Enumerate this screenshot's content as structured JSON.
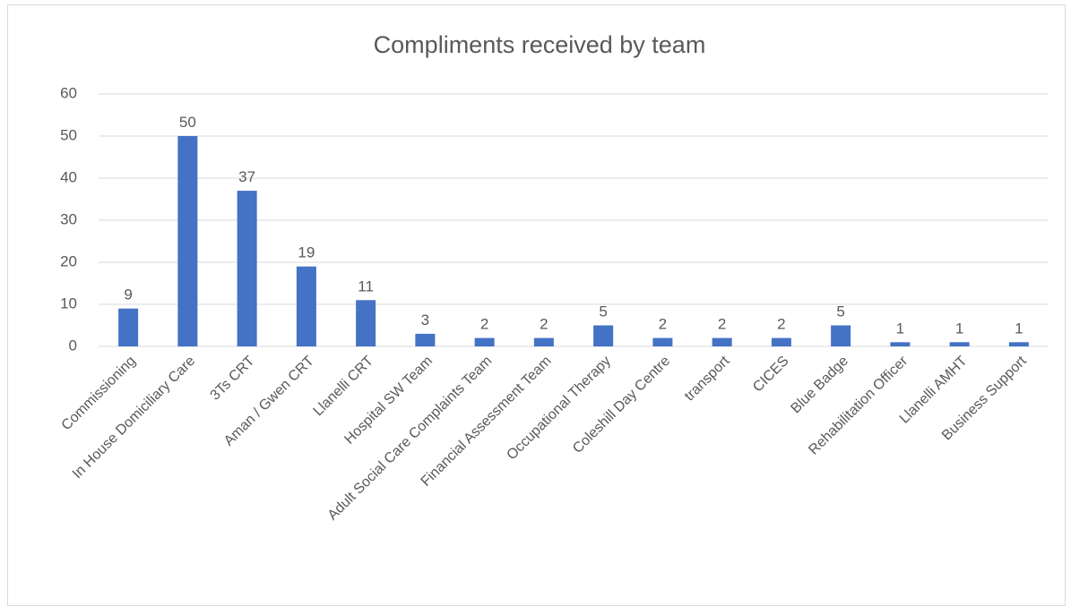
{
  "chart_data": {
    "type": "bar",
    "title": "Compliments received by team",
    "categories": [
      "Commissioning",
      "In House Domiciliary Care",
      "3Ts CRT",
      "Aman / Gwen CRT",
      "Llanelli CRT",
      "Hospital SW Team",
      "Adult Social Care Complaints Team",
      "Financial Assessment Team",
      "Occupational Therapy",
      "Coleshill Day Centre",
      "transport",
      "CICES",
      "Blue Badge",
      "Rehabilitation Officer",
      "Llanelli AMHT",
      "Business Support"
    ],
    "values": [
      9,
      50,
      37,
      19,
      11,
      3,
      2,
      2,
      5,
      2,
      2,
      2,
      5,
      1,
      1,
      1
    ],
    "color": "#4472c4",
    "ylim": [
      0,
      60
    ],
    "yticks": [
      0,
      10,
      20,
      30,
      40,
      50,
      60
    ],
    "grid": true
  }
}
